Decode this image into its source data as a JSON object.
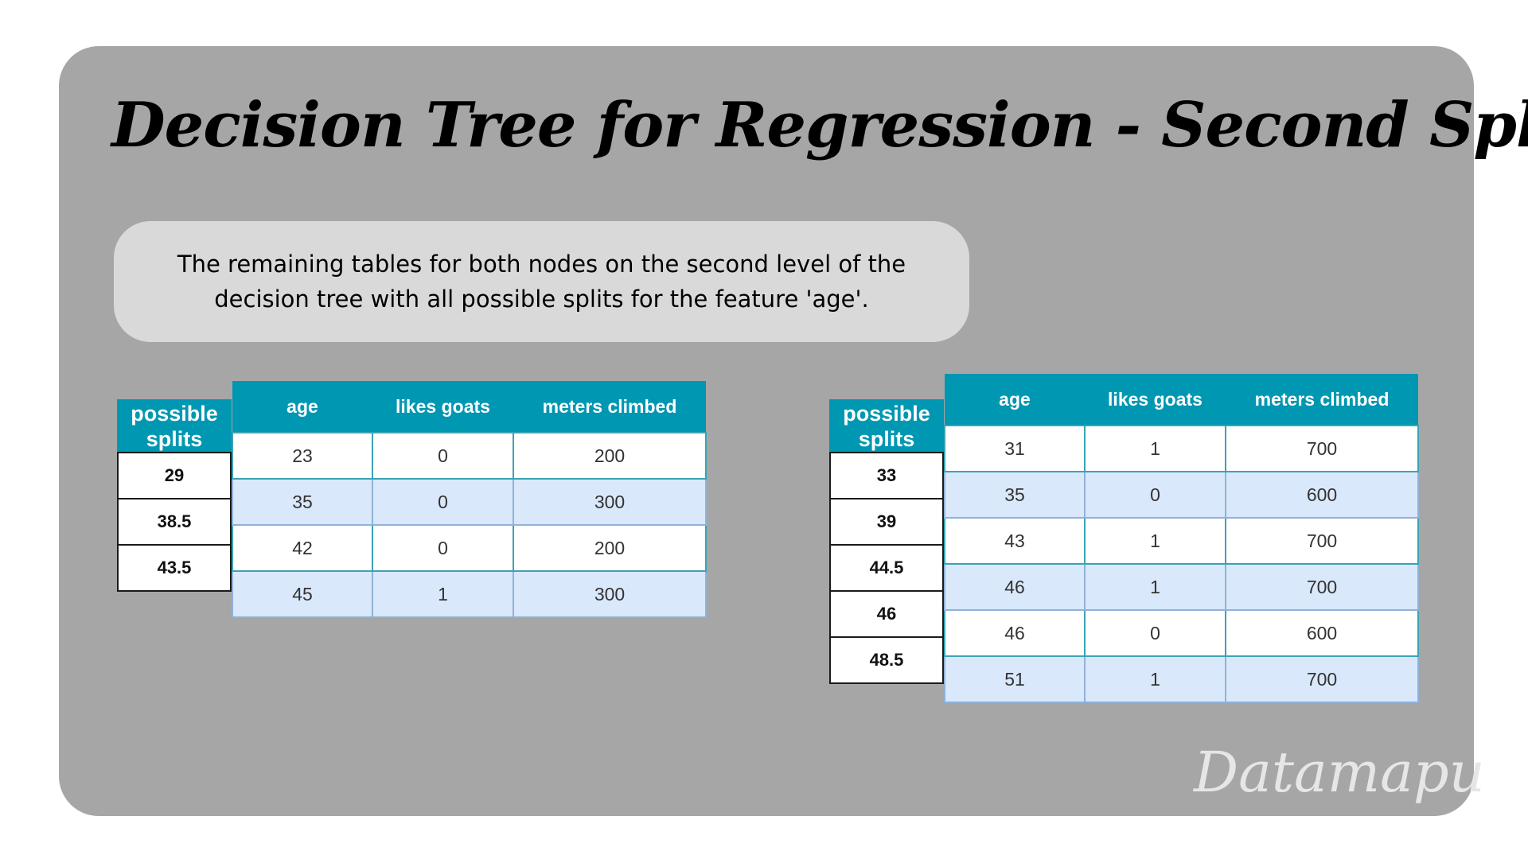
{
  "title": "Decision Tree for Regression - Second Split",
  "description": "The remaining tables for both nodes on the second level of the decision tree with all possible splits for the feature 'age'.",
  "left": {
    "splits_header": "possible splits",
    "splits": [
      "29",
      "38.5",
      "43.5"
    ],
    "columns": [
      "age",
      "likes goats",
      "meters climbed"
    ],
    "rows": [
      [
        "23",
        "0",
        "200"
      ],
      [
        "35",
        "0",
        "300"
      ],
      [
        "42",
        "0",
        "200"
      ],
      [
        "45",
        "1",
        "300"
      ]
    ]
  },
  "right": {
    "splits_header": "possible splits",
    "splits": [
      "33",
      "39",
      "44.5",
      "46",
      "48.5"
    ],
    "columns": [
      "age",
      "likes goats",
      "meters climbed"
    ],
    "rows": [
      [
        "31",
        "1",
        "700"
      ],
      [
        "35",
        "0",
        "600"
      ],
      [
        "43",
        "1",
        "700"
      ],
      [
        "46",
        "1",
        "700"
      ],
      [
        "46",
        "0",
        "600"
      ],
      [
        "51",
        "1",
        "700"
      ]
    ]
  },
  "watermark": "Datamapu"
}
